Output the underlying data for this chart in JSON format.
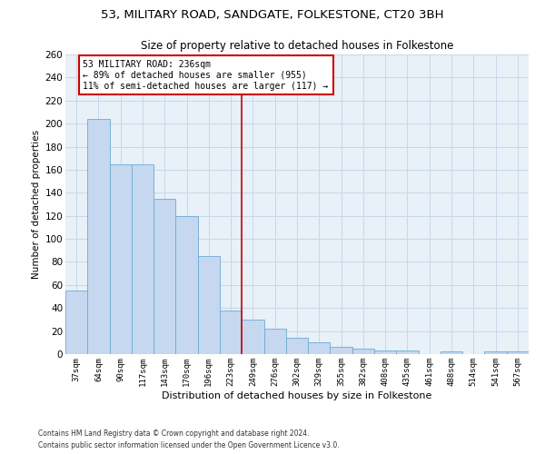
{
  "title1": "53, MILITARY ROAD, SANDGATE, FOLKESTONE, CT20 3BH",
  "title2": "Size of property relative to detached houses in Folkestone",
  "xlabel": "Distribution of detached houses by size in Folkestone",
  "ylabel": "Number of detached properties",
  "categories": [
    "37sqm",
    "64sqm",
    "90sqm",
    "117sqm",
    "143sqm",
    "170sqm",
    "196sqm",
    "223sqm",
    "249sqm",
    "276sqm",
    "302sqm",
    "329sqm",
    "355sqm",
    "382sqm",
    "408sqm",
    "435sqm",
    "461sqm",
    "488sqm",
    "514sqm",
    "541sqm",
    "567sqm"
  ],
  "values": [
    55,
    204,
    165,
    165,
    135,
    120,
    85,
    38,
    30,
    22,
    14,
    10,
    6,
    5,
    3,
    3,
    0,
    2,
    0,
    2,
    2
  ],
  "bar_color": "#c5d8f0",
  "bar_edge_color": "#6aaad4",
  "vline_x": 7.5,
  "vline_color": "#cc0000",
  "annotation_text": "53 MILITARY ROAD: 236sqm\n← 89% of detached houses are smaller (955)\n11% of semi-detached houses are larger (117) →",
  "annotation_box_color": "#ffffff",
  "annotation_box_edge": "#cc0000",
  "ylim": [
    0,
    260
  ],
  "yticks": [
    0,
    20,
    40,
    60,
    80,
    100,
    120,
    140,
    160,
    180,
    200,
    220,
    240,
    260
  ],
  "grid_color": "#c8d8e8",
  "bg_color": "#e8f0f8",
  "footer1": "Contains HM Land Registry data © Crown copyright and database right 2024.",
  "footer2": "Contains public sector information licensed under the Open Government Licence v3.0."
}
